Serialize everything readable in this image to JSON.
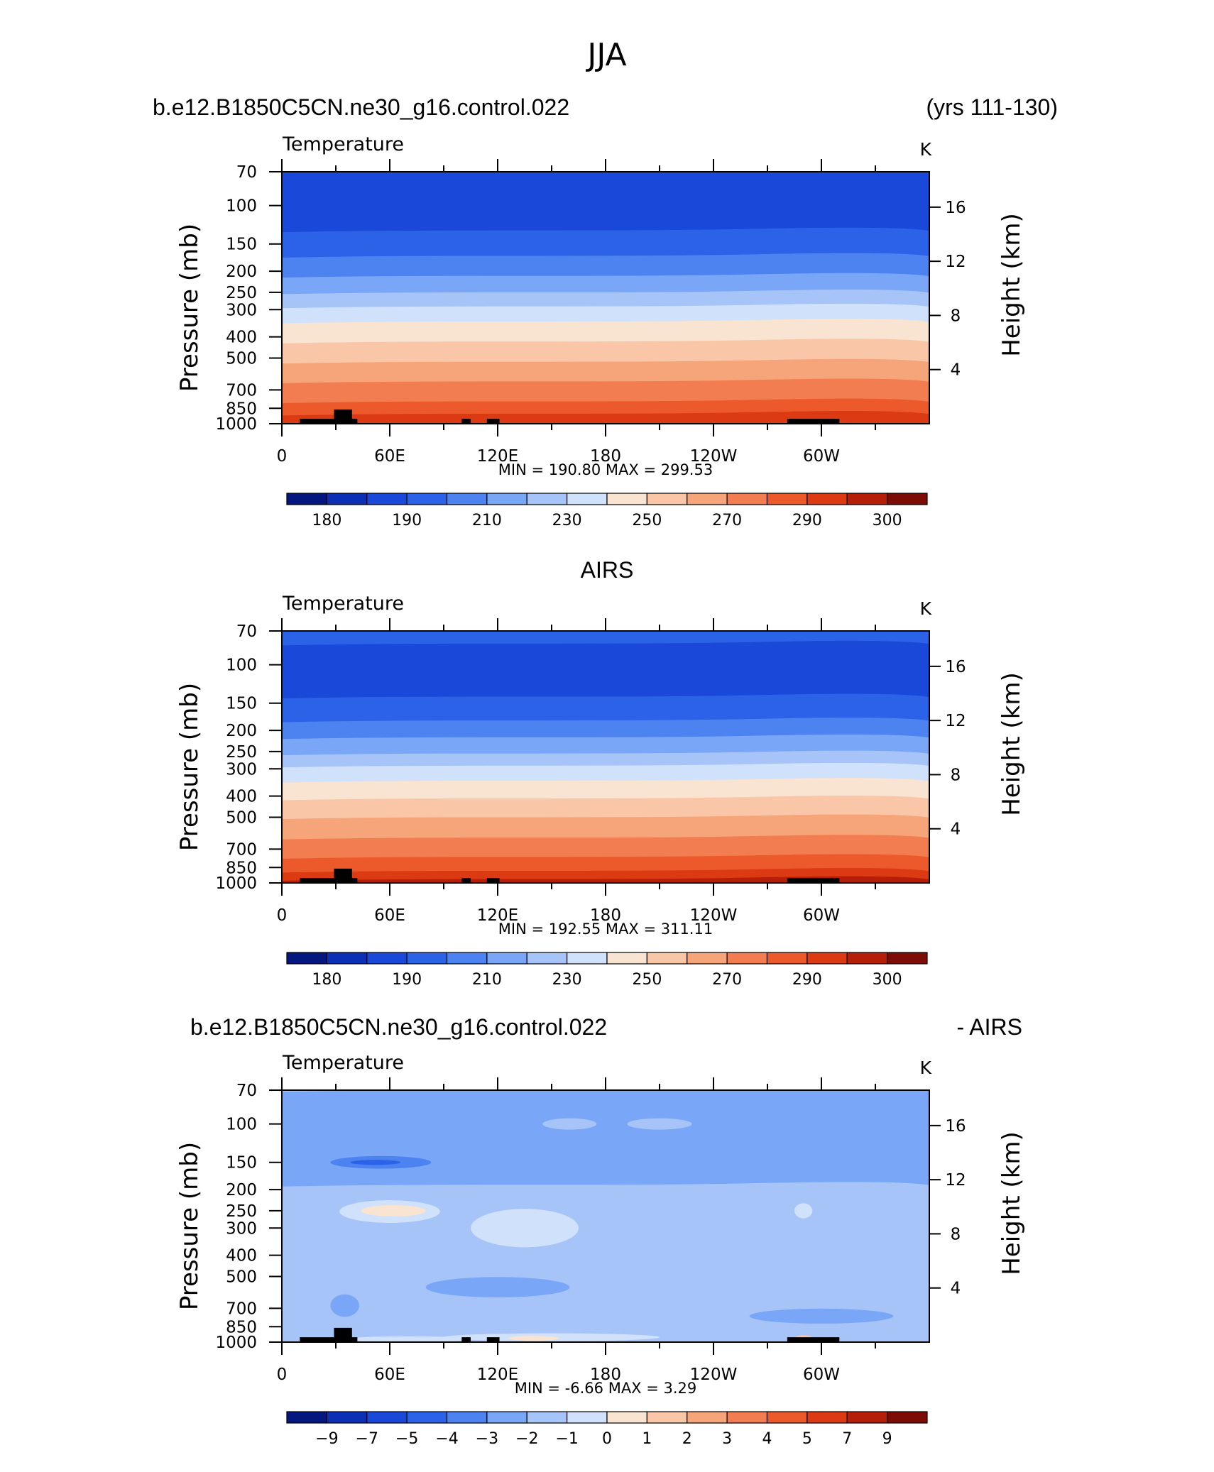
{
  "figure": {
    "title": "JJA",
    "run_name": "b.e12.B1850C5CN.ne30_g16.control.022",
    "years": "(yrs 111-130)",
    "obs_name": "AIRS",
    "diff_suffix": "- AIRS"
  },
  "chart_data": [
    {
      "type": "heatmap",
      "panel": "model",
      "variable": "Temperature",
      "units": "K",
      "xlabel": "",
      "ylabel": "Pressure (mb)",
      "y2label": "Height (km)",
      "x_ticks": [
        "0",
        "60E",
        "120E",
        "180",
        "120W",
        "60W"
      ],
      "x_range": [
        0,
        360
      ],
      "y_ticks": [
        "70",
        "100",
        "150",
        "200",
        "250",
        "300",
        "400",
        "500",
        "700",
        "850",
        "1000"
      ],
      "y_range_mb": [
        70,
        1000
      ],
      "y2_ticks": [
        "16",
        "12",
        "8",
        "4"
      ],
      "stats_text": "MIN =  190.80   MAX =  299.53",
      "min": 190.8,
      "max": 299.53,
      "colorbar_labels": [
        "180",
        "190",
        "210",
        "230",
        "250",
        "270",
        "290",
        "300"
      ],
      "colorbar_colors": [
        "#04177f",
        "#0b2fb5",
        "#1a48d9",
        "#2c62e8",
        "#4d83f0",
        "#7aa6f7",
        "#a6c4f7",
        "#cfe1fb",
        "#f9e3d1",
        "#f9c7a8",
        "#f6a47a",
        "#f27d50",
        "#ec5a2b",
        "#db3a12",
        "#b51f0a",
        "#7e0c06"
      ],
      "layers": [
        {
          "p": 70,
          "color": "#1a48d9"
        },
        {
          "p": 130,
          "color": "#2c62e8"
        },
        {
          "p": 170,
          "color": "#4d83f0"
        },
        {
          "p": 210,
          "color": "#7aa6f7"
        },
        {
          "p": 250,
          "color": "#a6c4f7"
        },
        {
          "p": 290,
          "color": "#cfe1fb"
        },
        {
          "p": 340,
          "color": "#f9e3d1"
        },
        {
          "p": 420,
          "color": "#f9c7a8"
        },
        {
          "p": 520,
          "color": "#f6a47a"
        },
        {
          "p": 640,
          "color": "#f27d50"
        },
        {
          "p": 790,
          "color": "#ec5a2b"
        },
        {
          "p": 900,
          "color": "#db3a12"
        }
      ]
    },
    {
      "type": "heatmap",
      "panel": "obs",
      "variable": "Temperature",
      "units": "K",
      "xlabel": "",
      "ylabel": "Pressure (mb)",
      "y2label": "Height (km)",
      "x_ticks": [
        "0",
        "60E",
        "120E",
        "180",
        "120W",
        "60W"
      ],
      "x_range": [
        0,
        360
      ],
      "y_ticks": [
        "70",
        "100",
        "150",
        "200",
        "250",
        "300",
        "400",
        "500",
        "700",
        "850",
        "1000"
      ],
      "y_range_mb": [
        70,
        1000
      ],
      "y2_ticks": [
        "16",
        "12",
        "8",
        "4"
      ],
      "stats_text": "MIN =  192.55   MAX =  311.11",
      "min": 192.55,
      "max": 311.11,
      "colorbar_labels": [
        "180",
        "190",
        "210",
        "230",
        "250",
        "270",
        "290",
        "300"
      ],
      "colorbar_colors": [
        "#04177f",
        "#0b2fb5",
        "#1a48d9",
        "#2c62e8",
        "#4d83f0",
        "#7aa6f7",
        "#a6c4f7",
        "#cfe1fb",
        "#f9e3d1",
        "#f9c7a8",
        "#f6a47a",
        "#f27d50",
        "#ec5a2b",
        "#db3a12",
        "#b51f0a",
        "#7e0c06"
      ],
      "layers": [
        {
          "p": 70,
          "color": "#2c62e8"
        },
        {
          "p": 80,
          "color": "#1a48d9"
        },
        {
          "p": 140,
          "color": "#2c62e8"
        },
        {
          "p": 180,
          "color": "#4d83f0"
        },
        {
          "p": 215,
          "color": "#7aa6f7"
        },
        {
          "p": 255,
          "color": "#a6c4f7"
        },
        {
          "p": 290,
          "color": "#cfe1fb"
        },
        {
          "p": 340,
          "color": "#f9e3d1"
        },
        {
          "p": 410,
          "color": "#f9c7a8"
        },
        {
          "p": 500,
          "color": "#f6a47a"
        },
        {
          "p": 620,
          "color": "#f27d50"
        },
        {
          "p": 760,
          "color": "#ec5a2b"
        },
        {
          "p": 880,
          "color": "#db3a12"
        },
        {
          "p": 960,
          "color": "#b51f0a"
        }
      ]
    },
    {
      "type": "heatmap",
      "panel": "difference",
      "variable": "Temperature",
      "units": "K",
      "xlabel": "",
      "ylabel": "Pressure (mb)",
      "y2label": "Height (km)",
      "x_ticks": [
        "0",
        "60E",
        "120E",
        "180",
        "120W",
        "60W"
      ],
      "x_range": [
        0,
        360
      ],
      "y_ticks": [
        "70",
        "100",
        "150",
        "200",
        "250",
        "300",
        "400",
        "500",
        "700",
        "850",
        "1000"
      ],
      "y_range_mb": [
        70,
        1000
      ],
      "y2_ticks": [
        "16",
        "12",
        "8",
        "4"
      ],
      "stats_text": "MIN =    -6.66   MAX =     3.29",
      "min": -6.66,
      "max": 3.29,
      "colorbar_labels": [
        "-9",
        "-7",
        "-5",
        "-4",
        "-3",
        "-2",
        "-1",
        "0",
        "1",
        "2",
        "3",
        "4",
        "5",
        "7",
        "9"
      ],
      "colorbar_colors": [
        "#04177f",
        "#0b2fb5",
        "#1a48d9",
        "#2c62e8",
        "#4d83f0",
        "#7aa6f7",
        "#a6c4f7",
        "#cfe1fb",
        "#f9e3d1",
        "#f9c7a8",
        "#f6a47a",
        "#f27d50",
        "#ec5a2b",
        "#db3a12",
        "#b51f0a",
        "#7e0c06"
      ],
      "background": "#a6c4f7",
      "layers": [
        {
          "p": 70,
          "color": "#7aa6f7"
        },
        {
          "p": 190,
          "color": "#a6c4f7"
        }
      ],
      "features": [
        {
          "shape": "ellipse",
          "lon": 55,
          "p": 150,
          "dlon": 28,
          "dp": 10,
          "color": "#4d83f0"
        },
        {
          "shape": "ellipse",
          "lon": 52,
          "p": 150,
          "dlon": 14,
          "dp": 4,
          "color": "#2c62e8"
        },
        {
          "shape": "ellipse",
          "lon": 60,
          "p": 252,
          "dlon": 28,
          "dp": 30,
          "color": "#cfe1fb"
        },
        {
          "shape": "ellipse",
          "lon": 62,
          "p": 250,
          "dlon": 18,
          "dp": 15,
          "color": "#f9e3d1"
        },
        {
          "shape": "ellipse",
          "lon": 135,
          "p": 300,
          "dlon": 30,
          "dp": 60,
          "color": "#cfe1fb"
        },
        {
          "shape": "ellipse",
          "lon": 160,
          "p": 100,
          "dlon": 15,
          "dp": 6,
          "color": "#a6c4f7"
        },
        {
          "shape": "ellipse",
          "lon": 210,
          "p": 100,
          "dlon": 18,
          "dp": 6,
          "color": "#a6c4f7"
        },
        {
          "shape": "ellipse",
          "lon": 290,
          "p": 250,
          "dlon": 5,
          "dp": 20,
          "color": "#cfe1fb"
        },
        {
          "shape": "ellipse",
          "lon": 150,
          "p": 950,
          "dlon": 60,
          "dp": 40,
          "color": "#cfe1fb"
        },
        {
          "shape": "ellipse",
          "lon": 140,
          "p": 960,
          "dlon": 14,
          "dp": 25,
          "color": "#f9e3d1"
        },
        {
          "shape": "ellipse",
          "lon": 70,
          "p": 970,
          "dlon": 35,
          "dp": 30,
          "color": "#cfe1fb"
        },
        {
          "shape": "ellipse",
          "lon": 290,
          "p": 960,
          "dlon": 5,
          "dp": 30,
          "color": "#f9c7a8"
        },
        {
          "shape": "ellipse",
          "lon": 35,
          "p": 680,
          "dlon": 8,
          "dp": 80,
          "color": "#7aa6f7"
        },
        {
          "shape": "ellipse",
          "lon": 120,
          "p": 560,
          "dlon": 40,
          "dp": 60,
          "color": "#7aa6f7"
        },
        {
          "shape": "ellipse",
          "lon": 300,
          "p": 760,
          "dlon": 40,
          "dp": 60,
          "color": "#7aa6f7"
        }
      ],
      "topo": [
        {
          "lon0": 10,
          "lon1": 42,
          "p": 950
        },
        {
          "lon0": 29,
          "lon1": 39,
          "p": 860
        },
        {
          "lon0": 100,
          "lon1": 105,
          "p": 950
        },
        {
          "lon0": 114,
          "lon1": 121,
          "p": 950
        },
        {
          "lon0": 281,
          "lon1": 310,
          "p": 950
        }
      ]
    }
  ]
}
